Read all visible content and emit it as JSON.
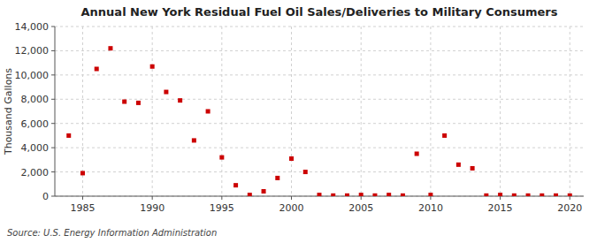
{
  "chart_data": {
    "type": "scatter",
    "title": "Annual New York Residual Fuel Oil Sales/Deliveries to Military Consumers",
    "ylabel": "Thousand Gallons",
    "source": "Source: U.S. Energy Information Administration",
    "x": [
      1984,
      1985,
      1986,
      1987,
      1988,
      1989,
      1990,
      1991,
      1992,
      1993,
      1994,
      1995,
      1996,
      1997,
      1998,
      1999,
      2000,
      2001,
      2002,
      2003,
      2004,
      2005,
      2006,
      2007,
      2008,
      2009,
      2010,
      2011,
      2012,
      2013,
      2014,
      2015,
      2016,
      2017,
      2018,
      2019,
      2020
    ],
    "values": [
      5000,
      1900,
      10500,
      12200,
      7800,
      7700,
      10700,
      8600,
      7900,
      4600,
      7000,
      3200,
      900,
      100,
      400,
      1500,
      3100,
      2000,
      100,
      50,
      50,
      100,
      50,
      100,
      50,
      3500,
      100,
      5000,
      2600,
      2300,
      50,
      100,
      50,
      50,
      50,
      50,
      50
    ],
    "color": "#cc0000",
    "marker": "square",
    "xlim": [
      1983,
      2021
    ],
    "ylim": [
      0,
      14000
    ],
    "xticks": [
      1985,
      1990,
      1995,
      2000,
      2005,
      2010,
      2015,
      2020
    ],
    "yticks": [
      0,
      {
        "value": 2000,
        "label": "2,000"
      },
      {
        "value": 4000,
        "label": "4,000"
      },
      {
        "value": 6000,
        "label": "6,000"
      },
      {
        "value": 8000,
        "label": "8,000"
      },
      {
        "value": 10000,
        "label": "10,000"
      },
      {
        "value": 12000,
        "label": "12,000"
      },
      {
        "value": 14000,
        "label": "14,000"
      }
    ],
    "grid": true
  }
}
